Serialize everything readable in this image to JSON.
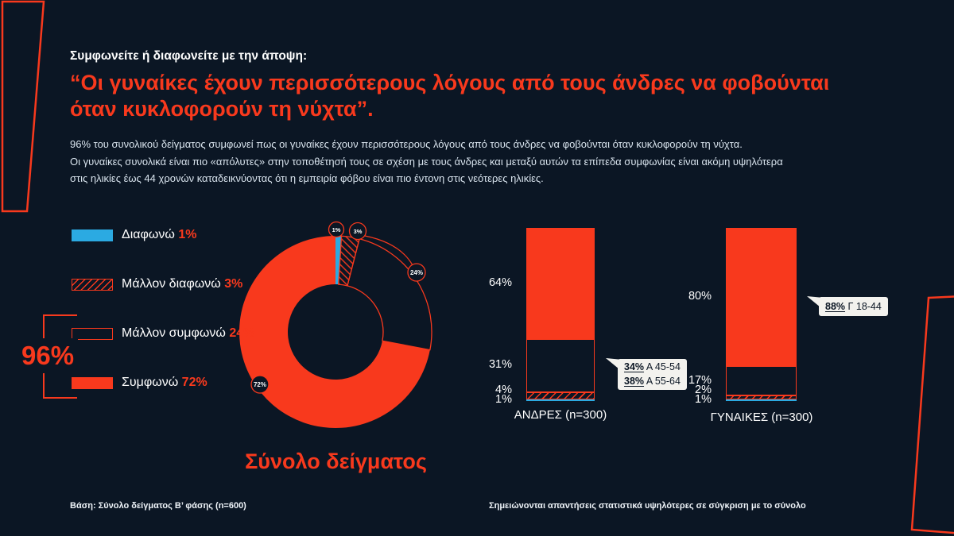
{
  "header": {
    "kicker": "Συμφωνείτε ή διαφωνείτε με την άποψη:",
    "title": "“Οι γυναίκες έχουν περισσότερους λόγους από τους άνδρες να φοβούνται\nόταν κυκλοφορούν τη νύχτα”.",
    "body": "96% του συνολικού δείγματος συμφωνεί πως οι γυναίκες έχουν περισσότερους λόγους από τους άνδρες να φοβούνται όταν κυκλοφορούν τη νύχτα.\nΟι γυναίκες συνολικά είναι πιο «απόλυτες» στην τοποθέτησή τους σε σχέση με τους άνδρες και μεταξύ αυτών τα επίπεδα συμφωνίας είναι ακόμη υψηλότερα\nστις ηλικίες έως 44 χρονών καταδεικνύοντας ότι η εμπειρία φόβου είναι πιο έντονη στις νεότερες ηλικίες."
  },
  "legend": {
    "agree_total": "96%",
    "items": [
      {
        "label": "Διαφωνώ",
        "value": "1%",
        "style": "blue-solid"
      },
      {
        "label": "Μάλλον διαφωνώ",
        "value": "3%",
        "style": "red-hatch"
      },
      {
        "label": "Μάλλον συμφωνώ",
        "value": "24%",
        "style": "red-outline"
      },
      {
        "label": "Συμφωνώ",
        "value": "72%",
        "style": "red-solid"
      }
    ]
  },
  "chart_data": [
    {
      "type": "pie",
      "subtype": "donut",
      "title": "Σύνολο δείγματος",
      "unit": "%",
      "categories": [
        "Διαφωνώ",
        "Μάλλον διαφωνώ",
        "Μάλλον συμφωνώ",
        "Συμφωνώ"
      ],
      "values": [
        1,
        3,
        24,
        72
      ],
      "styles": [
        "blue-solid",
        "red-hatch",
        "red-outline",
        "red-solid"
      ],
      "start_angle_deg": 0,
      "direction": "clockwise"
    },
    {
      "type": "bar",
      "subtype": "stacked-percent-columns",
      "unit": "%",
      "categories_top_to_bottom": [
        "Συμφωνώ",
        "Μάλλον συμφωνώ",
        "Μάλλον διαφωνώ",
        "Διαφωνώ"
      ],
      "styles": [
        "red-solid",
        "red-outline",
        "red-hatch",
        "blue-solid"
      ],
      "series": [
        {
          "name": "ΑΝΔΡΕΣ (n=300)",
          "values": [
            64,
            31,
            4,
            1
          ]
        },
        {
          "name": "ΓΥΝΑΙΚΕΣ (n=300)",
          "values": [
            80,
            17,
            2,
            1
          ]
        }
      ],
      "annotations": [
        {
          "series": "ΑΝΔΡΕΣ (n=300)",
          "lines": [
            {
              "bold": "34%",
              "rest": " Α 45-54"
            },
            {
              "bold": "38%",
              "rest": " Α 55-64"
            }
          ]
        },
        {
          "series": "ΓΥΝΑΙΚΕΣ (n=300)",
          "lines": [
            {
              "bold": "88%",
              "rest": " Γ 18-44"
            }
          ]
        }
      ]
    }
  ],
  "footer": {
    "left": "Βάση: Σύνολο δείγματος Β’ φάσης (n=600)",
    "right": "Σημειώνονται απαντήσεις στατιστικά υψηλότερες σε σύγκριση με το σύνολο"
  },
  "colors": {
    "background": "#0B1624",
    "red": "#F8391D",
    "blue": "#2BAAE2",
    "white": "#FFFFFF",
    "callout_bg": "#F3F2EE"
  }
}
